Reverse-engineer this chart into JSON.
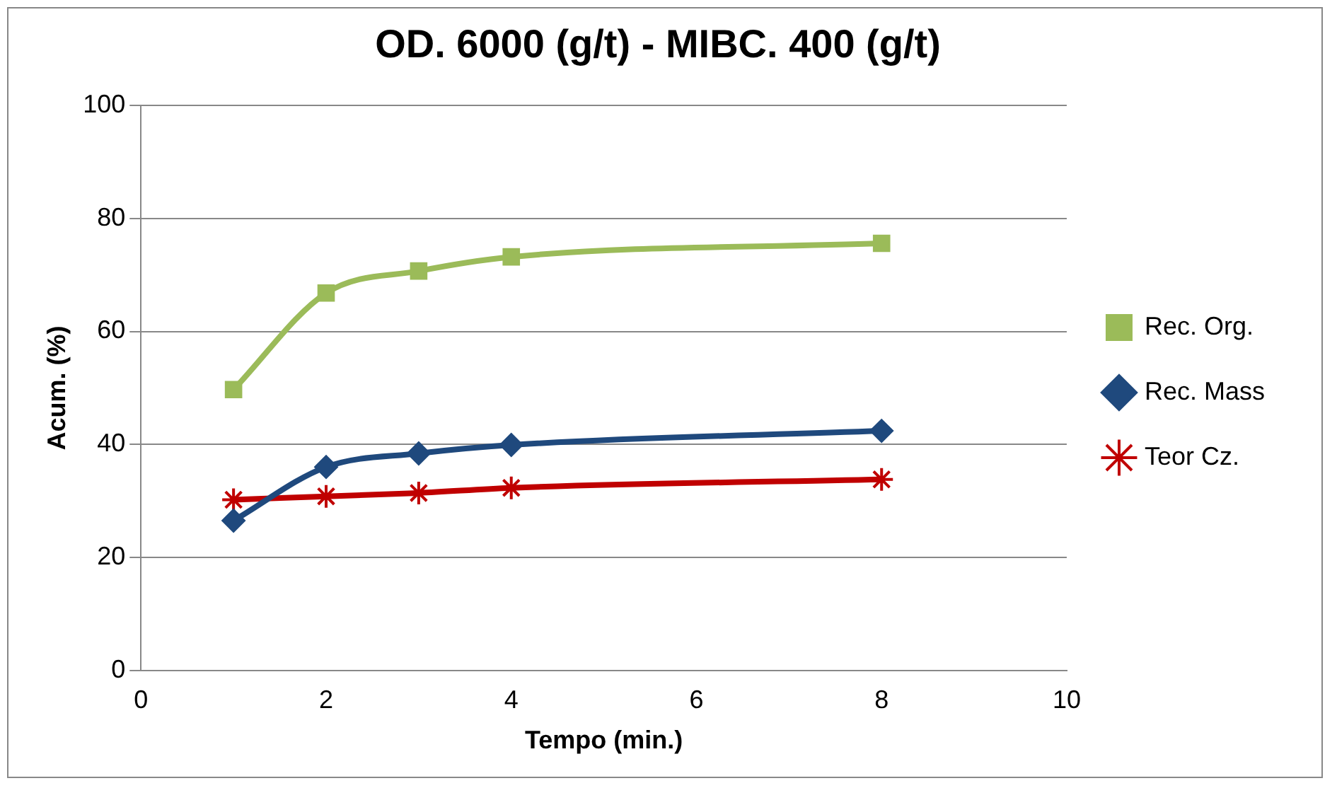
{
  "chart_data": {
    "type": "line",
    "title": "OD. 6000 (g/t) - MIBC. 400 (g/t)",
    "xlabel": "Tempo (min.)",
    "ylabel": "Acum. (%)",
    "x": [
      1,
      2,
      3,
      4,
      8
    ],
    "series": [
      {
        "name": "Rec. Org.",
        "color": "#9bbb59",
        "marker": "square",
        "values": [
          49.7,
          66.8,
          70.7,
          73.2,
          75.6
        ]
      },
      {
        "name": "Rec. Mass",
        "color": "#1f497d",
        "marker": "diamond",
        "values": [
          26.5,
          36.0,
          38.4,
          39.9,
          42.4
        ]
      },
      {
        "name": "Teor Cz.",
        "color": "#c00000",
        "marker": "cross",
        "values": [
          30.2,
          30.8,
          31.4,
          32.3,
          33.8
        ]
      }
    ],
    "xlim": [
      0,
      10
    ],
    "xticks": [
      0,
      2,
      4,
      6,
      8,
      10
    ],
    "ylim": [
      0,
      100
    ],
    "yticks": [
      0,
      20,
      40,
      60,
      80,
      100
    ],
    "grid": "y",
    "legend": "right",
    "line_style": "solid"
  }
}
